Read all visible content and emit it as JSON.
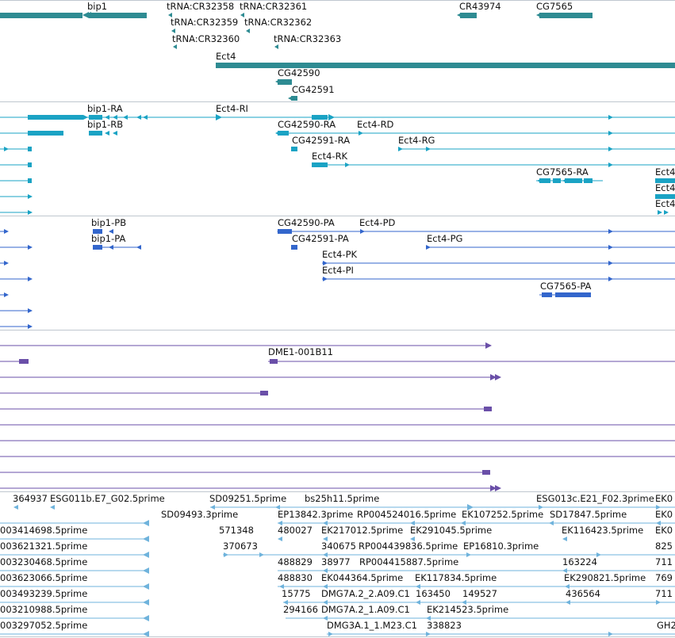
{
  "colors": {
    "gene": "#2e8b92",
    "flybase": "#1aa3c4",
    "refseq": "#3366cc",
    "cdna": "#6a4fa8",
    "est": "#6fb3dc",
    "separator": "#bfc7cf"
  },
  "genes": {
    "bip1": "bip1",
    "trna_32358": "tRNA:CR32358",
    "trna_32361": "tRNA:CR32361",
    "cr43974": "CR43974",
    "cg7565": "CG7565",
    "trna_32359": "tRNA:CR32359",
    "trna_32362": "tRNA:CR32362",
    "trna_32360": "tRNA:CR32360",
    "trna_32363": "tRNA:CR32363",
    "ect4": "Ect4",
    "cg42590": "CG42590",
    "cg42591": "CG42591"
  },
  "transcripts_a": {
    "bip1_ra": "bip1-RA",
    "bip1_rb": "bip1-RB",
    "ect4_ri": "Ect4-RI",
    "cg42590_ra": "CG42590-RA",
    "ect4_rd": "Ect4-RD",
    "cg42591_ra": "CG42591-RA",
    "ect4_rg": "Ect4-RG",
    "ect4_rk": "Ect4-RK",
    "cg7565_ra": "CG7565-RA",
    "ect4_trunc": "Ect4"
  },
  "transcripts_b": {
    "bip1_pb": "bip1-PB",
    "bip1_pa": "bip1-PA",
    "cg42590_pa": "CG42590-PA",
    "ect4_pd": "Ect4-PD",
    "cg42591_pa": "CG42591-PA",
    "ect4_pg": "Ect4-PG",
    "ect4_pk": "Ect4-PK",
    "ect4_pi": "Ect4-PI",
    "cg7565_pa": "CG7565-PA"
  },
  "cdna": {
    "dme1": "DME1-001B11"
  },
  "ests": [
    "364937",
    "ESG011b.E7_G02.5prime",
    "SD09251.5prime",
    "bs25h11.5prime",
    "ESG013c.E21_F02.3prime",
    "EK0",
    "SD09493.3prime",
    "EP13842.3prime",
    "RP004524016.5prime",
    "EK107252.5prime",
    "SD17847.5prime",
    "EK0",
    "003414698.5prime",
    "571348",
    "480027",
    "EK217012.5prime",
    "EK291045.5prime",
    "EK116423.5prime",
    "EK0",
    "370673",
    "340675",
    "RP004439836.5prime",
    "EP16810.3prime",
    "825",
    "003621321.5prime",
    "488829",
    "38977",
    "RP004415887.5prime",
    "163224",
    "711",
    "003230468.5prime",
    "488830",
    "EK044364.5prime",
    "EK117834.5prime",
    "EK290821.5prime",
    "769",
    "003623066.5prime",
    "15775",
    "DMG7A.2_2.A09.C1",
    "163450",
    "149527",
    "436564",
    "711",
    "003493239.5prime",
    "294166",
    "DMG7A.2_1.A09.C1",
    "EK214523.5prime",
    "003210988.5prime",
    "DMG3A.1_1.M23.C1",
    "338823",
    "GH2",
    "003297052.5prime"
  ]
}
